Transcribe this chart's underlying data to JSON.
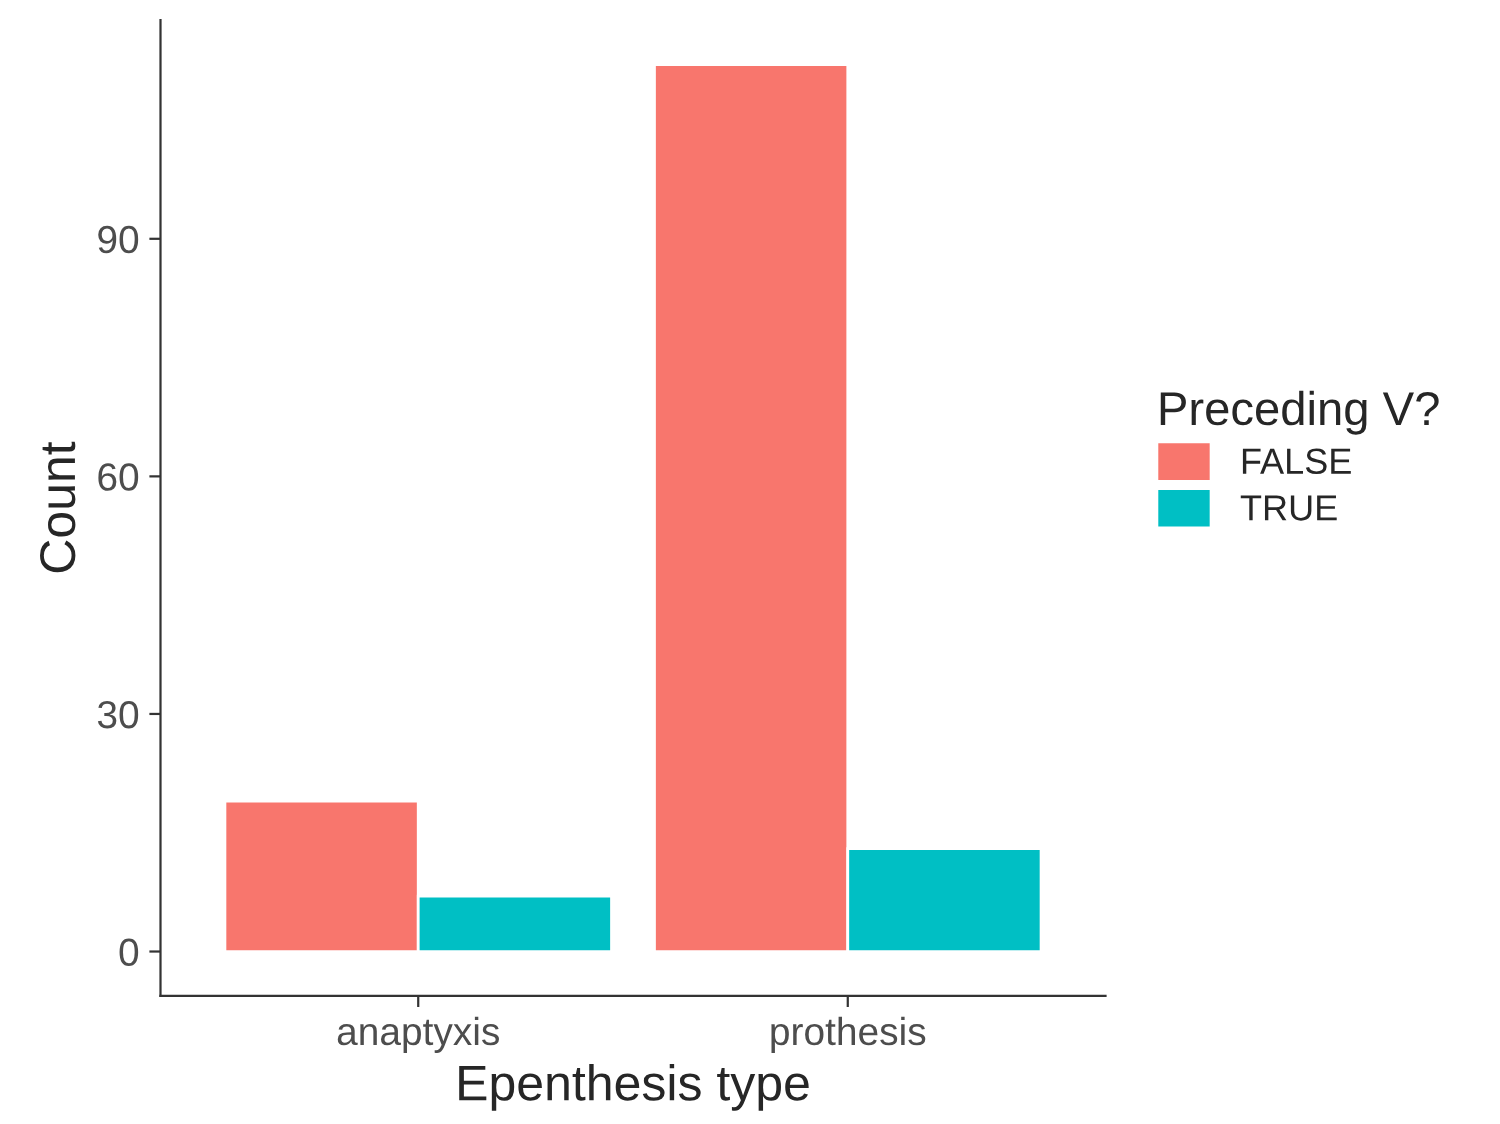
{
  "chart_data": {
    "type": "bar",
    "xlabel": "Epenthesis type",
    "ylabel": "Count",
    "legend_title": "Preceding V?",
    "categories": [
      "anaptyxis",
      "prothesis"
    ],
    "series": [
      {
        "name": "FALSE",
        "color": "#f8766d",
        "values": [
          19,
          112
        ]
      },
      {
        "name": "TRUE",
        "color": "#00bfc4",
        "values": [
          7,
          13
        ]
      }
    ],
    "ylim": [
      -5.6,
      117.6
    ],
    "yticks": [
      0,
      30,
      60,
      90
    ],
    "grid": false,
    "legend": "right"
  }
}
